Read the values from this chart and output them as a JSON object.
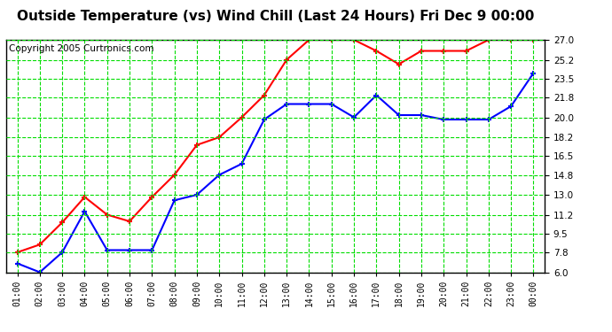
{
  "title": "Outside Temperature (vs) Wind Chill (Last 24 Hours) Fri Dec 9 00:00",
  "copyright": "Copyright 2005 Curtronics.com",
  "x_labels": [
    "01:00",
    "02:00",
    "03:00",
    "04:00",
    "05:00",
    "06:00",
    "07:00",
    "08:00",
    "09:00",
    "10:00",
    "11:00",
    "12:00",
    "13:00",
    "14:00",
    "15:00",
    "16:00",
    "17:00",
    "18:00",
    "19:00",
    "20:00",
    "21:00",
    "22:00",
    "23:00",
    "00:00"
  ],
  "red_data": [
    7.8,
    8.5,
    10.5,
    12.8,
    11.2,
    10.6,
    12.8,
    14.8,
    17.5,
    18.2,
    20.0,
    22.0,
    25.2,
    27.0,
    27.0,
    27.0,
    26.0,
    24.8,
    26.0,
    26.0,
    26.0,
    27.0,
    27.0,
    27.0
  ],
  "blue_data": [
    6.8,
    6.0,
    7.8,
    11.5,
    8.0,
    8.0,
    8.0,
    12.5,
    13.0,
    14.8,
    15.8,
    19.8,
    21.2,
    21.2,
    21.2,
    20.0,
    22.0,
    20.2,
    20.2,
    19.8,
    19.8,
    19.8,
    21.0,
    24.0
  ],
  "ylim": [
    6.0,
    27.0
  ],
  "yticks": [
    6.0,
    7.8,
    9.5,
    11.2,
    13.0,
    14.8,
    16.5,
    18.2,
    20.0,
    21.8,
    23.5,
    25.2,
    27.0
  ],
  "red_color": "#ff0000",
  "blue_color": "#0000ff",
  "bg_color": "#ffffff",
  "grid_color": "#00dd00",
  "title_fontsize": 11,
  "copyright_fontsize": 7.5
}
